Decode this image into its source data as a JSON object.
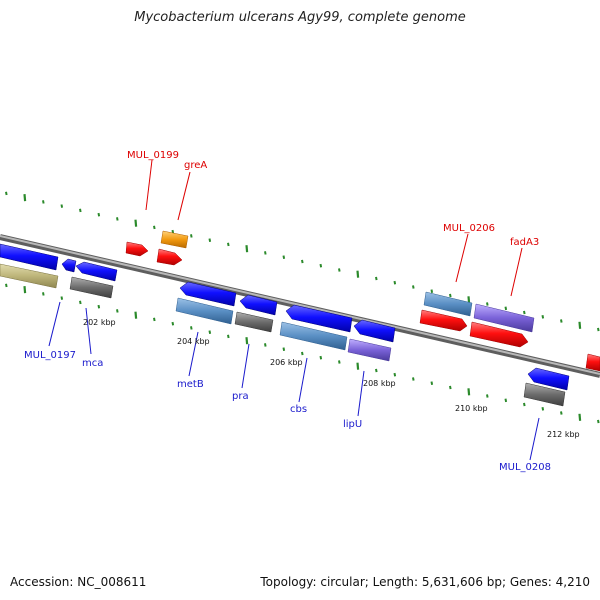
{
  "title": "Mycobacterium ulcerans Agy99, complete genome",
  "footer": {
    "accession": "Accession: NC_008611",
    "summary": "Topology: circular; Length: 5,631,606 bp; Genes: 4,210"
  },
  "colors": {
    "backbone": "#8a8a8a",
    "tick": "#2b8a2b",
    "label_red": "#dd0000",
    "label_blue": "#1a1acc"
  },
  "gene_labels": [
    {
      "name": "MUL_0199",
      "color": "red"
    },
    {
      "name": "greA",
      "color": "red"
    },
    {
      "name": "MUL_0206",
      "color": "red"
    },
    {
      "name": "fadA3",
      "color": "red"
    },
    {
      "name": "MUL_0197",
      "color": "blue"
    },
    {
      "name": "mca",
      "color": "blue"
    },
    {
      "name": "metB",
      "color": "blue"
    },
    {
      "name": "pra",
      "color": "blue"
    },
    {
      "name": "cbs",
      "color": "blue"
    },
    {
      "name": "lipU",
      "color": "blue"
    },
    {
      "name": "MUL_0208",
      "color": "blue"
    }
  ],
  "position_labels": [
    "202 kbp",
    "204 kbp",
    "206 kbp",
    "208 kbp",
    "210 kbp",
    "212 kbp"
  ]
}
